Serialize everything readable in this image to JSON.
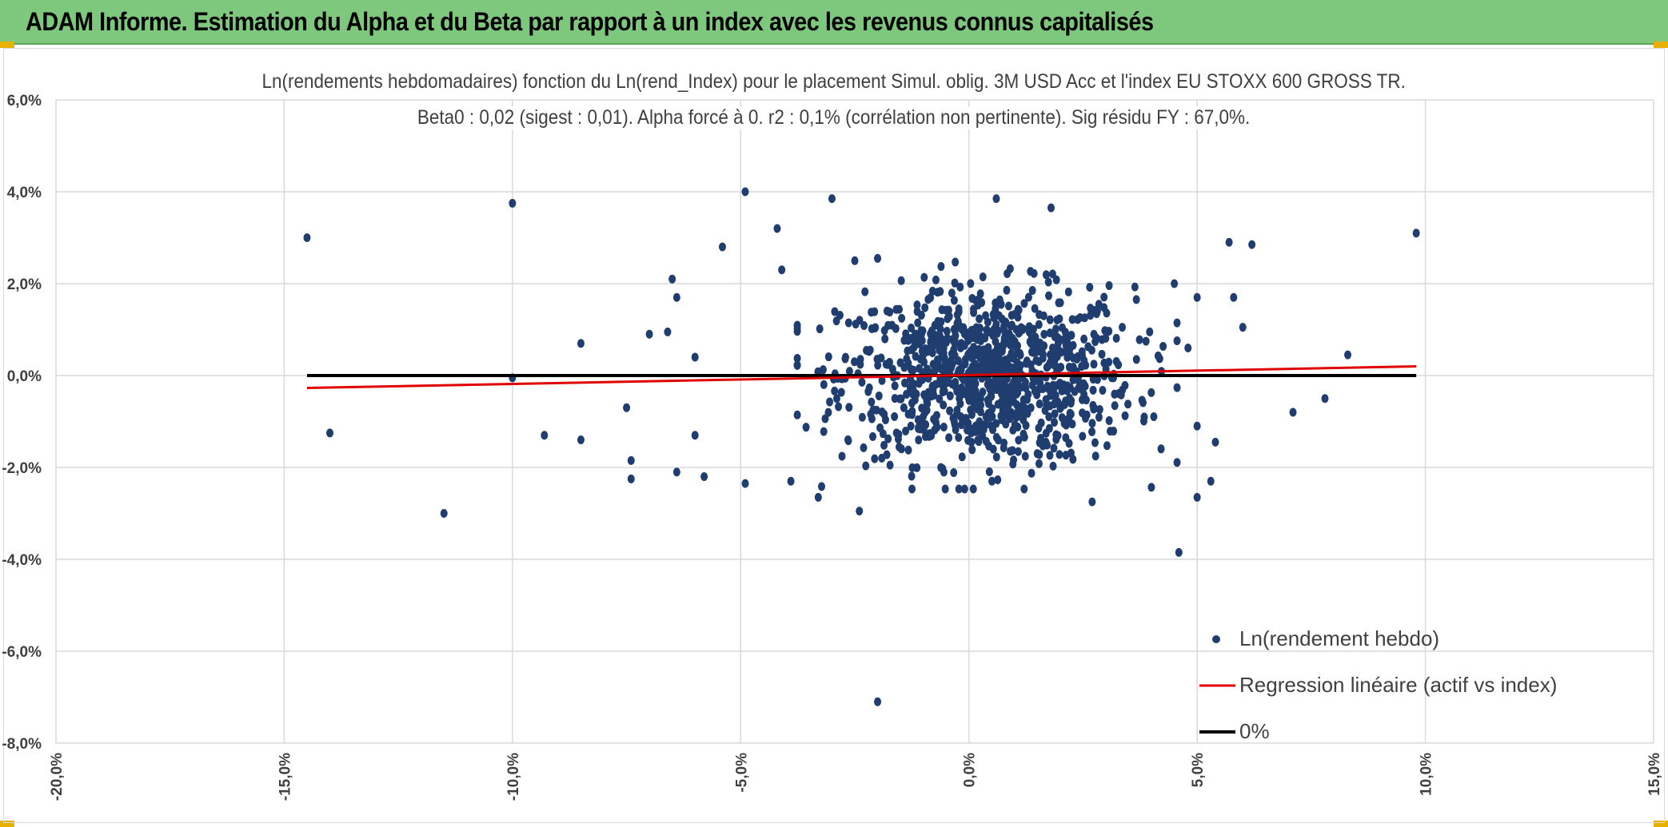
{
  "header": {
    "title": "ADAM Informe. Estimation du Alpha et du Beta par rapport à un index avec les revenus connus capitalisés"
  },
  "colors": {
    "header_bg": "#7dc87d",
    "points": "#1f3d6e",
    "regression": "#e00000",
    "zero_line": "#000000",
    "grid": "#d9d9d9"
  },
  "chart_data": {
    "type": "scatter",
    "title_line1": "Ln(rendements hebdomadaires) fonction du Ln(rend_Index) pour le placement Simul. oblig. 3M USD Acc et l'index EU STOXX 600 GROSS TR.",
    "title_line2": "Beta0 : 0,02 (sigest : 0,01). Alpha forcé à 0. r2 : 0,1% (corrélation non pertinente). Sig résidu FY : 67,0%.",
    "xlim": [
      -20,
      15
    ],
    "ylim": [
      -8,
      6
    ],
    "x_ticks": [
      -20,
      -15,
      -10,
      -5,
      0,
      5,
      10,
      15
    ],
    "y_ticks": [
      -8,
      -6,
      -4,
      -2,
      0,
      2,
      4,
      6
    ],
    "x_tick_labels": [
      "-20,0%",
      "-15,0%",
      "-10,0%",
      "-5,0%",
      "0,0%",
      "5,0%",
      "10,0%",
      "15,0%"
    ],
    "y_tick_labels": [
      "-8,0%",
      "-6,0%",
      "-4,0%",
      "-2,0%",
      "0,0%",
      "2,0%",
      "4,0%",
      "6,0%"
    ],
    "grid": true,
    "legend_position": "bottom-right",
    "series": [
      {
        "name": "Ln(rendement hebdo)",
        "kind": "scatter",
        "outliers": [
          [
            -14.5,
            3.0
          ],
          [
            -14.0,
            -1.25
          ],
          [
            -11.5,
            -3.0
          ],
          [
            -10.0,
            3.75
          ],
          [
            -10.0,
            -0.05
          ],
          [
            -9.3,
            -1.3
          ],
          [
            -8.5,
            0.7
          ],
          [
            -8.5,
            -1.4
          ],
          [
            -7.5,
            -0.7
          ],
          [
            -7.4,
            -1.85
          ],
          [
            -7.4,
            -2.25
          ],
          [
            -7.0,
            0.9
          ],
          [
            -6.6,
            0.95
          ],
          [
            -6.5,
            2.1
          ],
          [
            -6.4,
            1.7
          ],
          [
            -6.4,
            -2.1
          ],
          [
            -6.0,
            0.4
          ],
          [
            -6.0,
            -1.3
          ],
          [
            -5.8,
            -2.2
          ],
          [
            -5.4,
            2.8
          ],
          [
            -4.9,
            4.0
          ],
          [
            -4.9,
            -2.35
          ],
          [
            -4.2,
            3.2
          ],
          [
            -4.1,
            2.3
          ],
          [
            -3.9,
            -2.3
          ],
          [
            -3.0,
            3.85
          ],
          [
            -2.5,
            2.5
          ],
          [
            -2.4,
            -2.95
          ],
          [
            -2.0,
            2.55
          ],
          [
            -2.0,
            -7.1
          ],
          [
            0.6,
            3.85
          ],
          [
            1.8,
            3.65
          ],
          [
            4.5,
            2.0
          ],
          [
            4.6,
            -3.85
          ],
          [
            5.0,
            1.7
          ],
          [
            5.0,
            -2.65
          ],
          [
            5.3,
            -2.3
          ],
          [
            5.7,
            2.9
          ],
          [
            5.8,
            1.7
          ],
          [
            6.2,
            2.85
          ],
          [
            6.0,
            1.05
          ],
          [
            7.1,
            -0.8
          ],
          [
            7.8,
            -0.5
          ],
          [
            8.3,
            0.45
          ],
          [
            9.8,
            3.1
          ],
          [
            5.0,
            -1.1
          ],
          [
            5.4,
            -1.45
          ],
          [
            4.8,
            0.6
          ],
          [
            -3.3,
            -2.65
          ],
          [
            2.7,
            -2.75
          ]
        ],
        "cluster": {
          "count": 1000,
          "center_x": 0.4,
          "center_y": 0.0,
          "sd_x": 1.6,
          "sd_y": 0.95
        }
      },
      {
        "name": "Regression linéaire (actif vs index)",
        "kind": "line",
        "x": [
          -14.5,
          9.8
        ],
        "y": [
          -0.27,
          0.2
        ]
      },
      {
        "name": "0%",
        "kind": "line",
        "x": [
          -14.5,
          9.8
        ],
        "y": [
          0,
          0
        ]
      }
    ]
  }
}
